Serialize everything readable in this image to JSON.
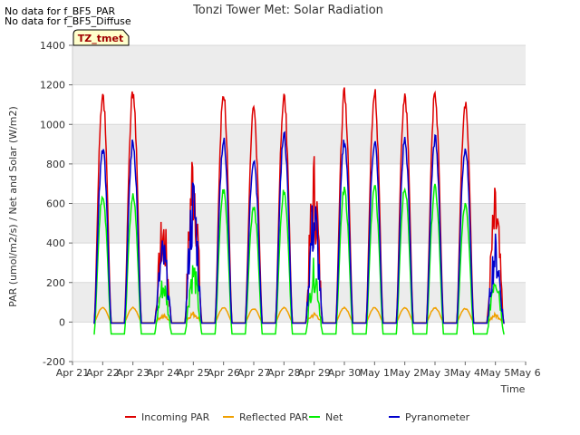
{
  "notes": [
    "No data for f_BF5_PAR",
    "No data for f_BF5_Diffuse"
  ],
  "chart_data": {
    "type": "line",
    "title": "Tonzi Tower Met: Solar Radiation",
    "xlabel": "Time",
    "ylabel": "PAR (umol/m2/s) / Net and Solar (W/m2)",
    "site_label": "TZ_tmet",
    "ylim": [
      -200,
      1400
    ],
    "yticks": [
      -200,
      0,
      200,
      400,
      600,
      800,
      1000,
      1200,
      1400
    ],
    "xlim": [
      0,
      15
    ],
    "xticks": [
      {
        "pos": 0,
        "label": "Apr 21"
      },
      {
        "pos": 1,
        "label": "Apr 22"
      },
      {
        "pos": 2,
        "label": "Apr 23"
      },
      {
        "pos": 3,
        "label": "Apr 24"
      },
      {
        "pos": 4,
        "label": "Apr 25"
      },
      {
        "pos": 5,
        "label": "Apr 26"
      },
      {
        "pos": 6,
        "label": "Apr 27"
      },
      {
        "pos": 7,
        "label": "Apr 28"
      },
      {
        "pos": 8,
        "label": "Apr 29"
      },
      {
        "pos": 9,
        "label": "Apr 30"
      },
      {
        "pos": 10,
        "label": "May 1"
      },
      {
        "pos": 11,
        "label": "May 2"
      },
      {
        "pos": 12,
        "label": "May 3"
      },
      {
        "pos": 13,
        "label": "May 4"
      },
      {
        "pos": 14,
        "label": "May 5"
      },
      {
        "pos": 15,
        "label": "May 6"
      }
    ],
    "grid": true,
    "legend_position": "bottom",
    "day_peaks": {
      "days": [
        "Apr 22",
        "Apr 23",
        "Apr 24",
        "Apr 25",
        "Apr 26",
        "Apr 27",
        "Apr 28",
        "Apr 29",
        "Apr 30",
        "May 1",
        "May 2",
        "May 3",
        "May 4",
        "May 5"
      ],
      "day_start": [
        0.5,
        1.5,
        2.5,
        3.5,
        4.5,
        5.5,
        6.5,
        7.5,
        8.5,
        9.5,
        10.5,
        11.5,
        12.5,
        13.5
      ]
    },
    "series": [
      {
        "name": "Incoming PAR",
        "color": "#dd0000",
        "peaks": [
          1200,
          1210,
          580,
          980,
          1200,
          1100,
          1180,
          890,
          1200,
          1210,
          1200,
          1190,
          1160,
          700
        ],
        "night": -5
      },
      {
        "name": "Reflected PAR",
        "color": "#f0a000",
        "peaks": [
          75,
          75,
          40,
          55,
          75,
          70,
          75,
          50,
          75,
          75,
          75,
          75,
          70,
          45
        ],
        "night": -3
      },
      {
        "name": "Net",
        "color": "#00ee00",
        "peaks": [
          670,
          660,
          240,
          330,
          690,
          610,
          680,
          330,
          690,
          700,
          700,
          700,
          610,
          320
        ],
        "night": -60
      },
      {
        "name": "Pyranometer",
        "color": "#0000cc",
        "peaks": [
          910,
          940,
          440,
          780,
          950,
          860,
          980,
          690,
          950,
          950,
          950,
          960,
          910,
          460
        ],
        "night": -5
      }
    ]
  }
}
